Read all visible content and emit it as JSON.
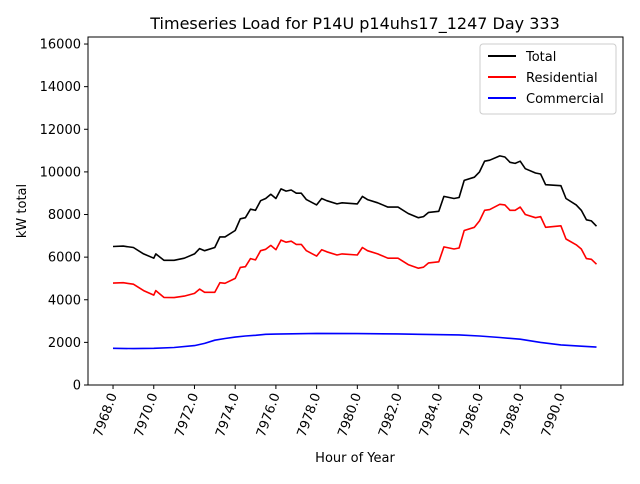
{
  "chart_data": {
    "type": "line",
    "title": "Timeseries Load for P14U p14uhs17_1247  Day 333",
    "xlabel": "Hour of Year",
    "ylabel": "kW total",
    "xlim": [
      7966.77,
      7993.05
    ],
    "ylim": [
      0,
      16330
    ],
    "x_ticks": [
      "7968.0",
      "7970.0",
      "7972.0",
      "7974.0",
      "7976.0",
      "7978.0",
      "7980.0",
      "7982.0",
      "7984.0",
      "7986.0",
      "7988.0",
      "7990.0"
    ],
    "x_tick_values": [
      7968,
      7970,
      7972,
      7974,
      7976,
      7978,
      7980,
      7982,
      7984,
      7986,
      7988,
      7990
    ],
    "y_ticks": [
      "0",
      "2000",
      "4000",
      "6000",
      "8000",
      "10000",
      "12000",
      "14000",
      "16000"
    ],
    "y_tick_values": [
      0,
      2000,
      4000,
      6000,
      8000,
      10000,
      12000,
      14000,
      16000
    ],
    "grid": false,
    "legend_position": "top-right",
    "series": [
      {
        "name": "Total",
        "color": "#000000",
        "x": [
          7968,
          7968.5,
          7969,
          7969.5,
          7970,
          7970.1,
          7970.5,
          7971,
          7971.5,
          7972,
          7972.25,
          7972.5,
          7973,
          7973.25,
          7973.5,
          7974,
          7974.25,
          7974.5,
          7974.75,
          7975,
          7975.25,
          7975.5,
          7975.75,
          7976,
          7976.25,
          7976.5,
          7976.75,
          7977,
          7977.25,
          7977.5,
          7978,
          7978.25,
          7978.5,
          7979,
          7979.25,
          7980,
          7980.25,
          7980.5,
          7981,
          7981.5,
          7982,
          7982.5,
          7983,
          7983.25,
          7983.5,
          7984,
          7984.25,
          7984.75,
          7985,
          7985.25,
          7985.75,
          7986,
          7986.25,
          7986.5,
          7987,
          7987.25,
          7987.5,
          7987.75,
          7988,
          7988.25,
          7988.75,
          7989,
          7989.25,
          7990,
          7990.25,
          7990.75,
          7991,
          7991.25,
          7991.5,
          7991.75
        ],
        "values": [
          6500,
          6520,
          6450,
          6150,
          5950,
          6150,
          5850,
          5850,
          5950,
          6150,
          6400,
          6300,
          6450,
          6950,
          6950,
          7250,
          7800,
          7850,
          8250,
          8200,
          8650,
          8750,
          8950,
          8750,
          9200,
          9100,
          9150,
          9000,
          9000,
          8700,
          8450,
          8750,
          8650,
          8500,
          8550,
          8500,
          8850,
          8700,
          8550,
          8350,
          8350,
          8050,
          7850,
          7900,
          8100,
          8150,
          8850,
          8750,
          8800,
          9600,
          9750,
          10000,
          10500,
          10550,
          10750,
          10700,
          10450,
          10400,
          10500,
          10150,
          9950,
          9900,
          9400,
          9350,
          8750,
          8450,
          8200,
          7750,
          7700,
          7450
        ]
      },
      {
        "name": "Residential",
        "color": "#ff0000",
        "x": [
          7968,
          7968.5,
          7969,
          7969.5,
          7970,
          7970.1,
          7970.5,
          7971,
          7971.5,
          7972,
          7972.25,
          7972.5,
          7973,
          7973.25,
          7973.5,
          7974,
          7974.25,
          7974.5,
          7974.75,
          7975,
          7975.25,
          7975.5,
          7975.75,
          7976,
          7976.25,
          7976.5,
          7976.75,
          7977,
          7977.25,
          7977.5,
          7978,
          7978.25,
          7978.5,
          7979,
          7979.25,
          7980,
          7980.25,
          7980.5,
          7981,
          7981.5,
          7982,
          7982.5,
          7983,
          7983.25,
          7983.5,
          7984,
          7984.25,
          7984.75,
          7985,
          7985.25,
          7985.75,
          7986,
          7986.25,
          7986.5,
          7987,
          7987.25,
          7987.5,
          7987.75,
          7988,
          7988.25,
          7988.75,
          7989,
          7989.25,
          7990,
          7990.25,
          7990.75,
          7991,
          7991.25,
          7991.5,
          7991.75
        ],
        "values": [
          4780,
          4800,
          4730,
          4430,
          4220,
          4430,
          4110,
          4100,
          4170,
          4300,
          4500,
          4350,
          4350,
          4800,
          4770,
          5000,
          5520,
          5550,
          5930,
          5870,
          6300,
          6370,
          6550,
          6350,
          6800,
          6700,
          6750,
          6600,
          6600,
          6300,
          6050,
          6350,
          6250,
          6100,
          6150,
          6100,
          6450,
          6300,
          6150,
          5950,
          5950,
          5650,
          5480,
          5530,
          5730,
          5780,
          6480,
          6380,
          6430,
          7250,
          7400,
          7700,
          8200,
          8230,
          8480,
          8450,
          8200,
          8200,
          8350,
          8000,
          7850,
          7900,
          7400,
          7470,
          6850,
          6580,
          6380,
          5930,
          5900,
          5670
        ]
      },
      {
        "name": "Commercial",
        "color": "#0000ff",
        "x": [
          7968,
          7969,
          7970,
          7971,
          7972,
          7972.5,
          7973,
          7973.5,
          7974,
          7974.5,
          7975,
          7975.5,
          7976,
          7978,
          7980,
          7982,
          7983,
          7985,
          7986,
          7987,
          7988,
          7989,
          7990,
          7991,
          7991.75
        ],
        "values": [
          1720,
          1710,
          1720,
          1760,
          1850,
          1950,
          2100,
          2180,
          2250,
          2300,
          2330,
          2380,
          2390,
          2420,
          2410,
          2400,
          2380,
          2350,
          2300,
          2230,
          2150,
          2000,
          1880,
          1820,
          1780
        ]
      }
    ]
  }
}
